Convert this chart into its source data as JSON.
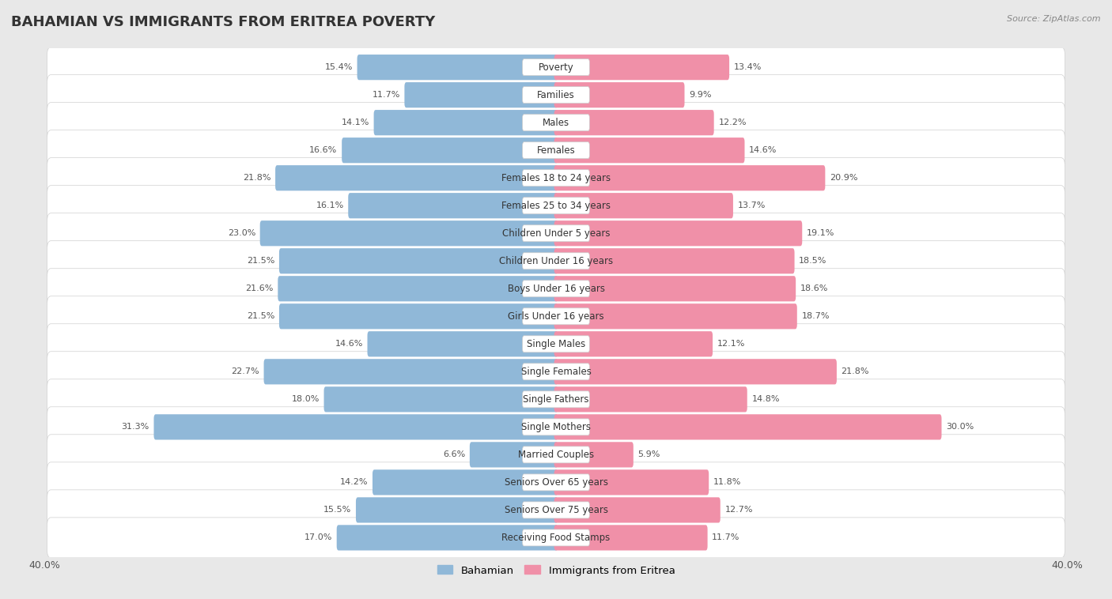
{
  "title": "BAHAMIAN VS IMMIGRANTS FROM ERITREA POVERTY",
  "source": "Source: ZipAtlas.com",
  "categories": [
    "Poverty",
    "Families",
    "Males",
    "Females",
    "Females 18 to 24 years",
    "Females 25 to 34 years",
    "Children Under 5 years",
    "Children Under 16 years",
    "Boys Under 16 years",
    "Girls Under 16 years",
    "Single Males",
    "Single Females",
    "Single Fathers",
    "Single Mothers",
    "Married Couples",
    "Seniors Over 65 years",
    "Seniors Over 75 years",
    "Receiving Food Stamps"
  ],
  "bahamian": [
    15.4,
    11.7,
    14.1,
    16.6,
    21.8,
    16.1,
    23.0,
    21.5,
    21.6,
    21.5,
    14.6,
    22.7,
    18.0,
    31.3,
    6.6,
    14.2,
    15.5,
    17.0
  ],
  "eritrea": [
    13.4,
    9.9,
    12.2,
    14.6,
    20.9,
    13.7,
    19.1,
    18.5,
    18.6,
    18.7,
    12.1,
    21.8,
    14.8,
    30.0,
    5.9,
    11.8,
    12.7,
    11.7
  ],
  "bahamian_color": "#90b8d8",
  "eritrea_color": "#f090a8",
  "row_bg_color": "#ffffff",
  "outer_bg_color": "#e8e8e8",
  "xlim": 40.0,
  "legend_labels": [
    "Bahamian",
    "Immigrants from Eritrea"
  ],
  "title_fontsize": 13,
  "bar_height": 0.62,
  "label_fontsize": 8.5,
  "value_fontsize": 8.0
}
